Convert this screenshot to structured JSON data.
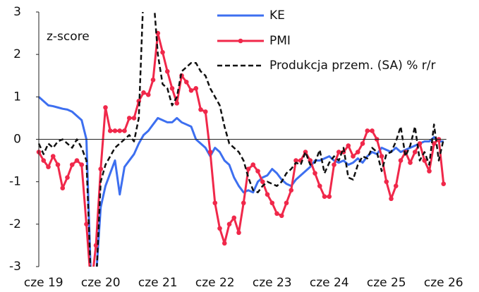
{
  "chart_data": {
    "type": "line",
    "annotation": "z-score",
    "categories": [
      null,
      "cze 19",
      null,
      null,
      null,
      null,
      null,
      null,
      null,
      null,
      null,
      null,
      null,
      "cze 20",
      null,
      null,
      null,
      null,
      null,
      null,
      null,
      null,
      null,
      null,
      null,
      "cze 21",
      null,
      null,
      null,
      null,
      null,
      null,
      null,
      null,
      null,
      null,
      null,
      "cze 22",
      null,
      null,
      null,
      null,
      null,
      null,
      null,
      null,
      null,
      null,
      null,
      "cze 23",
      null,
      null,
      null,
      null,
      null,
      null,
      null,
      null,
      null,
      null,
      null,
      "cze 24",
      null,
      null,
      null,
      null,
      null,
      null,
      null,
      null,
      null,
      null,
      null,
      "cze 25",
      null,
      null,
      null,
      null,
      null,
      null,
      null,
      null,
      null,
      null,
      null,
      "cze 26"
    ],
    "series": [
      {
        "name": "KE",
        "color": "#3d6ff0",
        "style": "solid",
        "markers": false,
        "values": [
          1.0,
          0.9,
          0.8,
          0.78,
          0.75,
          0.72,
          0.7,
          0.65,
          0.55,
          0.45,
          0.0,
          -3.5,
          -3.3,
          -1.6,
          -1.1,
          -0.8,
          -0.5,
          -1.3,
          -0.65,
          -0.5,
          -0.35,
          -0.1,
          0.1,
          0.2,
          0.35,
          0.5,
          0.45,
          0.4,
          0.4,
          0.5,
          0.4,
          0.35,
          0.3,
          0.0,
          -0.1,
          -0.2,
          -0.4,
          -0.2,
          -0.3,
          -0.5,
          -0.6,
          -0.9,
          -1.1,
          -1.25,
          -1.2,
          -1.25,
          -1.0,
          -0.9,
          -0.85,
          -0.7,
          -0.8,
          -0.95,
          -1.05,
          -1.1,
          -0.95,
          -0.85,
          -0.75,
          -0.65,
          -0.5,
          -0.5,
          -0.45,
          -0.4,
          -0.5,
          -0.55,
          -0.5,
          -0.6,
          -0.55,
          -0.45,
          -0.55,
          -0.4,
          -0.3,
          -0.35,
          -0.2,
          -0.25,
          -0.3,
          -0.2,
          -0.3,
          -0.25,
          -0.2,
          -0.15,
          -0.1,
          -0.05,
          -0.05,
          0.05,
          -0.05,
          -0.05
        ]
      },
      {
        "name": "PMI",
        "color": "#f0284a",
        "style": "solid",
        "markers": true,
        "values": [
          -0.3,
          -0.5,
          -0.65,
          -0.4,
          -0.6,
          -1.15,
          -0.9,
          -0.6,
          -0.5,
          -0.6,
          -2.0,
          -3.5,
          -2.5,
          -0.7,
          0.75,
          0.2,
          0.2,
          0.2,
          0.2,
          0.5,
          0.5,
          0.9,
          1.1,
          1.05,
          1.4,
          2.5,
          2.05,
          1.6,
          1.2,
          0.85,
          1.5,
          1.35,
          1.15,
          1.2,
          0.7,
          0.65,
          -0.3,
          -1.5,
          -2.1,
          -2.45,
          -2.0,
          -1.85,
          -2.2,
          -1.5,
          -0.7,
          -0.6,
          -0.75,
          -1.0,
          -1.3,
          -1.5,
          -1.75,
          -1.8,
          -1.5,
          -1.2,
          -0.5,
          -0.5,
          -0.3,
          -0.5,
          -0.8,
          -1.1,
          -1.35,
          -1.35,
          -0.6,
          -0.3,
          -0.3,
          -0.15,
          -0.4,
          -0.3,
          -0.1,
          0.2,
          0.2,
          0.0,
          -0.4,
          -1.0,
          -1.4,
          -1.1,
          -0.5,
          -0.3,
          -0.55,
          -0.3,
          -0.1,
          -0.5,
          -0.75,
          -0.1,
          0.0,
          -1.05
        ]
      },
      {
        "name": "Produkcja przem. (SA) % r/r",
        "color": "#111111",
        "style": "dashed",
        "markers": false,
        "values": [
          -0.1,
          -0.35,
          -0.1,
          -0.2,
          -0.05,
          0.0,
          -0.1,
          -0.2,
          0.0,
          -0.2,
          -0.5,
          -3.5,
          -3.5,
          -1.0,
          -0.6,
          -0.4,
          -0.2,
          -0.1,
          0.0,
          0.1,
          -0.05,
          0.5,
          3.5,
          3.5,
          3.5,
          2.0,
          1.3,
          1.2,
          0.8,
          1.0,
          1.6,
          1.7,
          1.8,
          1.8,
          1.6,
          1.5,
          1.2,
          1.0,
          0.8,
          0.3,
          -0.1,
          -0.2,
          -0.3,
          -0.5,
          -0.9,
          -1.2,
          -1.25,
          -1.1,
          -1.0,
          -1.05,
          -1.1,
          -1.0,
          -0.8,
          -0.7,
          -0.55,
          -0.6,
          -0.3,
          -0.6,
          -0.55,
          -0.25,
          -0.8,
          -0.55,
          -0.4,
          -0.5,
          -0.2,
          -0.9,
          -0.95,
          -0.6,
          -0.4,
          -0.45,
          -0.2,
          -0.3,
          -0.75,
          -0.35,
          -0.3,
          -0.05,
          0.3,
          -0.4,
          -0.15,
          0.3,
          -0.5,
          -0.3,
          -0.6,
          0.35,
          -0.5,
          0.0
        ]
      }
    ],
    "ylim": [
      -3,
      3
    ],
    "yticks": [
      -3,
      -2,
      -1,
      0,
      1,
      2,
      3
    ],
    "legend": "top-right"
  }
}
